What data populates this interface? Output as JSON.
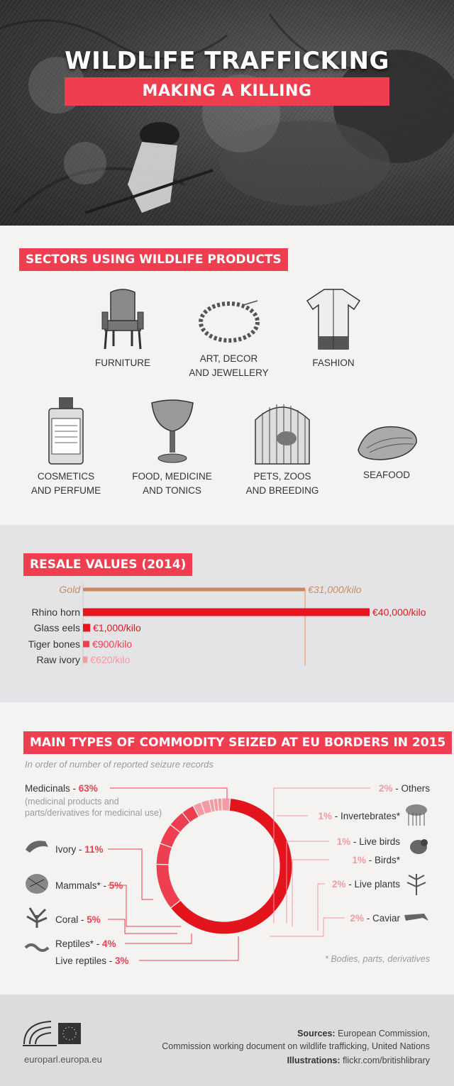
{
  "hero": {
    "title": "WILDLIFE TRAFFICKING",
    "subtitle": "MAKING A KILLING"
  },
  "sectors": {
    "heading": "SECTORS USING WILDLIFE PRODUCTS",
    "items": [
      {
        "label": "FURNITURE",
        "icon": "armchair-icon"
      },
      {
        "label": "ART, DECOR\nAND JEWELLERY",
        "icon": "necklace-icon"
      },
      {
        "label": "FASHION",
        "icon": "robe-icon"
      },
      {
        "label": "COSMETICS\nAND PERFUME",
        "icon": "perfume-bottle-icon"
      },
      {
        "label": "FOOD, MEDICINE\nAND TONICS",
        "icon": "goblet-icon"
      },
      {
        "label": "PETS, ZOOS\nAND BREEDING",
        "icon": "birdcage-icon"
      },
      {
        "label": "SEAFOOD",
        "icon": "shell-icon"
      }
    ]
  },
  "chart_data": [
    {
      "type": "bar",
      "title": "RESALE VALUES (2014)",
      "orientation": "horizontal",
      "unit": "€/kilo",
      "categories": [
        "Gold",
        "Rhino horn",
        "Glass eels",
        "Tiger bones",
        "Raw ivory"
      ],
      "values": [
        31000,
        40000,
        1000,
        900,
        620
      ],
      "value_labels": [
        "€31,000/kilo",
        "€40,000/kilo",
        "€1,000/kilo",
        "€900/kilo",
        "€620/kilo"
      ],
      "colors": [
        "#c98a63",
        "#e8141f",
        "#e8141f",
        "#ee3e4f",
        "#f39aa3"
      ]
    },
    {
      "type": "pie",
      "style": "donut",
      "title": "MAIN TYPES OF COMMODITY SEIZED AT EU BORDERS IN 2015",
      "subtitle": "In order of number of reported seizure records",
      "categories": [
        "Medicinals",
        "Ivory",
        "Mammals*",
        "Coral",
        "Reptiles*",
        "Live reptiles",
        "Caviar",
        "Live plants",
        "Birds*",
        "Live birds",
        "Invertebrates*",
        "Others"
      ],
      "values": [
        63,
        11,
        5,
        5,
        4,
        3,
        2,
        2,
        1,
        1,
        1,
        2
      ],
      "value_labels": [
        "63%",
        "11%",
        "5%",
        "5%",
        "4%",
        "3%",
        "2%",
        "2%",
        "1%",
        "1%",
        "1%",
        "2%"
      ],
      "notes": {
        "medicinals": "(medicinal products and\nparts/derivatives for medicinal use)",
        "footnote": "* Bodies, parts, derivatives"
      },
      "colors": {
        "primary": "#e3141c",
        "secondary": "#ee3e4f",
        "light": "#f39aa3"
      }
    }
  ],
  "footer": {
    "url": "europarl.europa.eu",
    "sources_label": "Sources:",
    "sources_text": "European Commission,",
    "sources_text2": "Commission working document on wildlife trafficking, United Nations",
    "illustrations_label": "Illustrations:",
    "illustrations_text": "flickr.com/britishlibrary"
  },
  "theme": {
    "accent": "#ee3e4f",
    "gold": "#c98a63"
  }
}
